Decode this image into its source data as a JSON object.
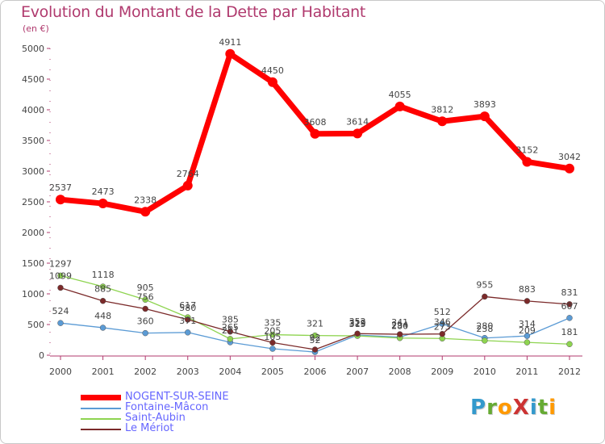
{
  "title": "Evolution du Montant de la Dette par Habitant",
  "unit_label": "(en €)",
  "logo": {
    "text": "ProXiti",
    "letters": [
      "P",
      "r",
      "o",
      "X",
      "i",
      "t",
      "i"
    ],
    "colors": [
      "#3399cc",
      "#66aa33",
      "#ff9900",
      "#cc3333",
      "#3399cc",
      "#66aa33",
      "#ff9900"
    ]
  },
  "chart_data": {
    "type": "line",
    "title": "Evolution du Montant de la Dette par Habitant",
    "ylabel": "(en €)",
    "xlabel": "",
    "x": [
      "2000",
      "2001",
      "2002",
      "2003",
      "2004",
      "2005",
      "2006",
      "2007",
      "2008",
      "2009",
      "2010",
      "2011",
      "2012"
    ],
    "ylim": [
      0,
      5000
    ],
    "yticks": [
      "0",
      "500",
      "1000",
      "1500",
      "2000",
      "2500",
      "3000",
      "3500",
      "4000",
      "4500",
      "5000"
    ],
    "grid": false,
    "legend_position": "bottom-left",
    "series": [
      {
        "name": "NOGENT-SUR-SEINE",
        "color": "#ff0000",
        "labels": true,
        "values": [
          2537,
          2473,
          2338,
          2764,
          4911,
          4450,
          3608,
          3614,
          4055,
          3812,
          3893,
          3152,
          3042
        ]
      },
      {
        "name": "Fontaine-Mâcon",
        "color": "#5b9bd5",
        "labels": true,
        "values": [
          524,
          448,
          360,
          371,
          211,
          105,
          52,
          329,
          294,
          512,
          280,
          314,
          607
        ]
      },
      {
        "name": "Saint-Aubin",
        "color": "#8ed450",
        "labels": true,
        "values": [
          1297,
          1118,
          905,
          617,
          265,
          335,
          321,
          315,
          280,
          273,
          238,
          209,
          181
        ]
      },
      {
        "name": "Le Mériot",
        "color": "#7b2a2a",
        "labels": true,
        "values": [
          1099,
          885,
          756,
          580,
          385,
          205,
          92,
          352,
          341,
          346,
          955,
          883,
          831
        ]
      }
    ]
  }
}
